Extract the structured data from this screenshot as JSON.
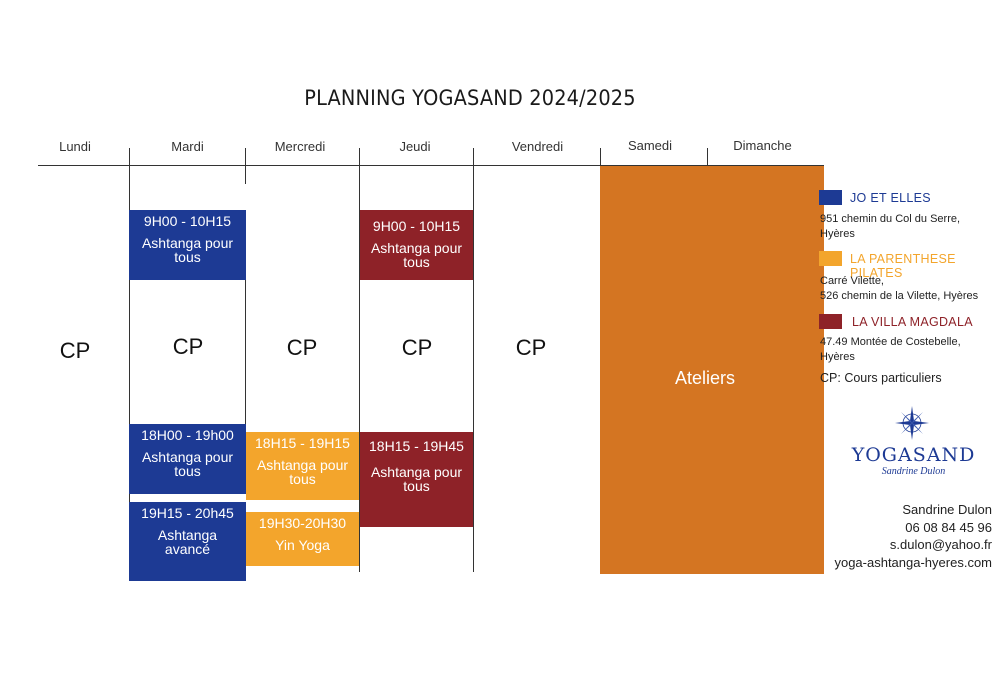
{
  "title": "PLANNING  YOGASAND 2024/2025",
  "days": [
    "Lundi",
    "Mardi",
    "Mercredi",
    "Jeudi",
    "Vendredi",
    "Samedi",
    "Dimanche"
  ],
  "cp_label": "CP",
  "sessions": {
    "mardi_1": {
      "time": "9H00 - 10H15",
      "name": "Ashtanga pour tous"
    },
    "mardi_2": {
      "time": "18H00 - 19h00",
      "name": "Ashtanga pour tous"
    },
    "mardi_3": {
      "time": "19H15 - 20h45",
      "name": "Ashtanga avancé"
    },
    "mercredi_1": {
      "time": "18H15 - 19H15",
      "name": "Ashtanga pour tous"
    },
    "mercredi_2": {
      "time": "19H30-20H30",
      "name": "Yin Yoga"
    },
    "jeudi_1": {
      "time": "9H00 - 10H15",
      "name": "Ashtanga pour tous"
    },
    "jeudi_2": {
      "time": "18H15 - 19H45",
      "name": "Ashtanga pour tous"
    }
  },
  "weekend_label": "Ateliers",
  "legend": [
    {
      "title": "JO ET ELLES",
      "color": "#1d3a94",
      "address": [
        "951 chemin du Col du Serre,",
        "Hyères"
      ]
    },
    {
      "title": "LA PARENTHESE PILATES",
      "color": "#f3a52c",
      "address": [
        "Carré Vilette,",
        "526 chemin de la Vilette, Hyères"
      ]
    },
    {
      "title": "LA VILLA MAGDALA",
      "color": "#8e2228",
      "address": [
        "47.49 Montée de Costebelle,",
        "Hyères"
      ]
    }
  ],
  "cp_note": {
    "abbr": "CP:",
    "text": "Cours particuliers"
  },
  "logo": {
    "name": "YOGASAND",
    "subtitle": "Sandrine Dulon",
    "icon": "compass-rose-icon"
  },
  "contact": {
    "name": "Sandrine Dulon",
    "phone": "06 08 84 45 96",
    "email": "s.dulon@yahoo.fr",
    "website": "yoga-ashtanga-hyeres.com"
  }
}
